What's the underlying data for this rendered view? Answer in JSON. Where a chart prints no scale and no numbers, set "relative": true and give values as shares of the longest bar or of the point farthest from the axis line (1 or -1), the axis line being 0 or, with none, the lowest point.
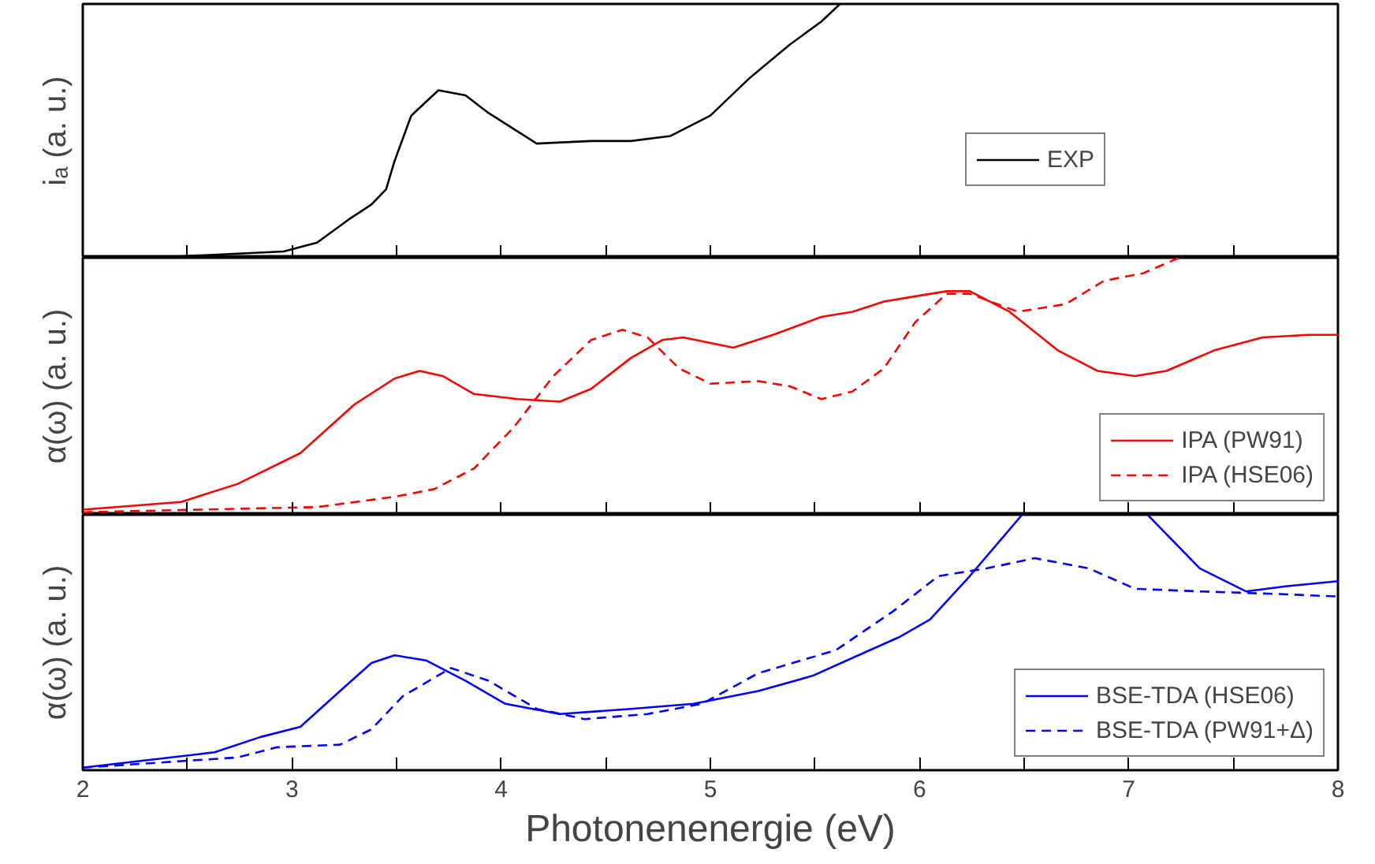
{
  "chart_data": [
    {
      "type": "line",
      "relative": true,
      "ylabel": "iₐ (a. u.)",
      "xlim": [
        2,
        8
      ],
      "xticks": [
        2,
        {
          "value": 2.5,
          "label": null
        },
        3,
        {
          "value": 3.5,
          "label": null
        },
        4,
        {
          "value": 4.5,
          "label": null
        },
        5,
        {
          "value": 5.5,
          "label": null
        },
        6,
        {
          "value": 6.5,
          "label": null
        },
        7,
        {
          "value": 7.5,
          "label": null
        },
        8
      ],
      "tick_labels": false,
      "legend": "right",
      "grid": false,
      "line_style": "solid",
      "series": [
        {
          "name": "EXP",
          "color": "#000000",
          "x": [
            2.32,
            2.96,
            3.12,
            3.27,
            3.38,
            3.45,
            3.49,
            3.57,
            3.7,
            3.83,
            3.94,
            4.17,
            4.43,
            4.62,
            4.81,
            5.0,
            5.19,
            5.38,
            5.53,
            5.62
          ],
          "values": [
            0,
            0.025,
            0.06,
            0.15,
            0.21,
            0.27,
            0.38,
            0.56,
            0.66,
            0.64,
            0.57,
            0.45,
            0.46,
            0.46,
            0.48,
            0.56,
            0.71,
            0.84,
            0.93,
            1.0
          ]
        }
      ]
    },
    {
      "type": "line",
      "relative": true,
      "ylabel": "α(ω) (a. u.)",
      "xlim": [
        2,
        8
      ],
      "xticks": [
        2,
        {
          "value": 2.5,
          "label": null
        },
        3,
        {
          "value": 3.5,
          "label": null
        },
        4,
        {
          "value": 4.5,
          "label": null
        },
        5,
        {
          "value": 5.5,
          "label": null
        },
        6,
        {
          "value": 6.5,
          "label": null
        },
        7,
        {
          "value": 7.5,
          "label": null
        },
        8
      ],
      "tick_labels": false,
      "legend": "bottom right",
      "grid": false,
      "series": [
        {
          "name": "IPA (PW91)",
          "color": "#ff0000",
          "line_style": "solid",
          "x": [
            2.0,
            2.47,
            2.74,
            3.04,
            3.3,
            3.49,
            3.61,
            3.72,
            3.87,
            4.08,
            4.28,
            4.43,
            4.62,
            4.77,
            4.87,
            5.11,
            5.3,
            5.53,
            5.68,
            5.83,
            5.98,
            6.13,
            6.24,
            6.43,
            6.66,
            6.85,
            7.03,
            7.18,
            7.41,
            7.64,
            7.86,
            8.0
          ],
          "values": [
            0.02,
            0.05,
            0.12,
            0.24,
            0.43,
            0.53,
            0.56,
            0.54,
            0.47,
            0.45,
            0.44,
            0.49,
            0.61,
            0.68,
            0.69,
            0.65,
            0.7,
            0.77,
            0.79,
            0.83,
            0.85,
            0.87,
            0.87,
            0.79,
            0.64,
            0.56,
            0.54,
            0.56,
            0.64,
            0.69,
            0.7,
            0.7
          ]
        },
        {
          "name": "IPA (HSE06)",
          "color": "#ff0000",
          "line_style": "dashed",
          "x": [
            2.0,
            3.12,
            3.49,
            3.68,
            3.87,
            4.06,
            4.25,
            4.43,
            4.58,
            4.7,
            4.85,
            5.0,
            5.23,
            5.38,
            5.53,
            5.68,
            5.83,
            5.98,
            6.13,
            6.24,
            6.47,
            6.7,
            6.88,
            7.07,
            7.24
          ],
          "values": [
            0.01,
            0.03,
            0.07,
            0.1,
            0.18,
            0.34,
            0.54,
            0.68,
            0.72,
            0.69,
            0.57,
            0.51,
            0.52,
            0.5,
            0.45,
            0.48,
            0.57,
            0.75,
            0.86,
            0.86,
            0.79,
            0.82,
            0.91,
            0.94,
            1.0
          ]
        }
      ]
    },
    {
      "type": "line",
      "relative": true,
      "xlabel": "Photonenenergie (eV)",
      "ylabel": "α(ω) (a. u.)",
      "xlim": [
        2,
        8
      ],
      "xticks": [
        2,
        {
          "value": 2.5,
          "label": null
        },
        3,
        {
          "value": 3.5,
          "label": null
        },
        4,
        {
          "value": 4.5,
          "label": null
        },
        5,
        {
          "value": 5.5,
          "label": null
        },
        6,
        {
          "value": 6.5,
          "label": null
        },
        7,
        {
          "value": 7.5,
          "label": null
        },
        8
      ],
      "tick_labels": "x",
      "legend": "bottom right",
      "grid": false,
      "series": [
        {
          "name": "BSE-TDA (HSE06)",
          "color": "#0000ff",
          "line_style": "solid",
          "x": [
            2.0,
            2.63,
            2.85,
            3.04,
            3.23,
            3.38,
            3.49,
            3.64,
            3.83,
            4.02,
            4.28,
            4.62,
            4.92,
            5.23,
            5.49,
            5.68,
            5.9,
            6.05,
            6.24,
            6.49,
            6.8,
            7.09,
            7.34,
            7.56,
            7.75,
            8.0
          ],
          "values": [
            0.01,
            0.07,
            0.13,
            0.17,
            0.31,
            0.42,
            0.45,
            0.43,
            0.35,
            0.26,
            0.22,
            0.24,
            0.26,
            0.31,
            0.37,
            0.44,
            0.52,
            0.59,
            0.76,
            1.0,
            null,
            1.0,
            0.79,
            0.7,
            0.72,
            0.74
          ]
        },
        {
          "name": "BSE-TDA (PW91+Δ)",
          "color": "#0000ff",
          "line_style": "dashed",
          "x": [
            2.0,
            2.74,
            2.93,
            3.23,
            3.38,
            3.53,
            3.76,
            3.94,
            4.17,
            4.4,
            4.7,
            4.96,
            5.23,
            5.6,
            5.87,
            6.09,
            6.32,
            6.55,
            6.81,
            7.03,
            7.34,
            7.71,
            8.0
          ],
          "values": [
            0.01,
            0.05,
            0.09,
            0.1,
            0.16,
            0.29,
            0.4,
            0.35,
            0.24,
            0.2,
            0.22,
            0.26,
            0.38,
            0.47,
            0.62,
            0.76,
            0.79,
            0.83,
            0.79,
            0.71,
            0.7,
            0.69,
            0.68
          ]
        }
      ]
    }
  ]
}
